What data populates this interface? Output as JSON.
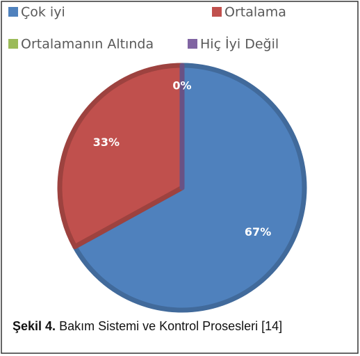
{
  "chart_data": {
    "type": "pie",
    "categories": [
      "Çok iyi",
      "Ortalama",
      "Ortalamanın Altında",
      "Hiç İyi Değil"
    ],
    "values": [
      67,
      33,
      0,
      0
    ],
    "value_labels": [
      "67%",
      "33%",
      "0%",
      null
    ],
    "colors": [
      "#4f81bd",
      "#c0504d",
      "#9bbb59",
      "#8064a2"
    ],
    "caption": {
      "label": "Şekil 4.",
      "text": "Bakım Sistemi ve Kontrol Prosesleri [14]"
    }
  }
}
